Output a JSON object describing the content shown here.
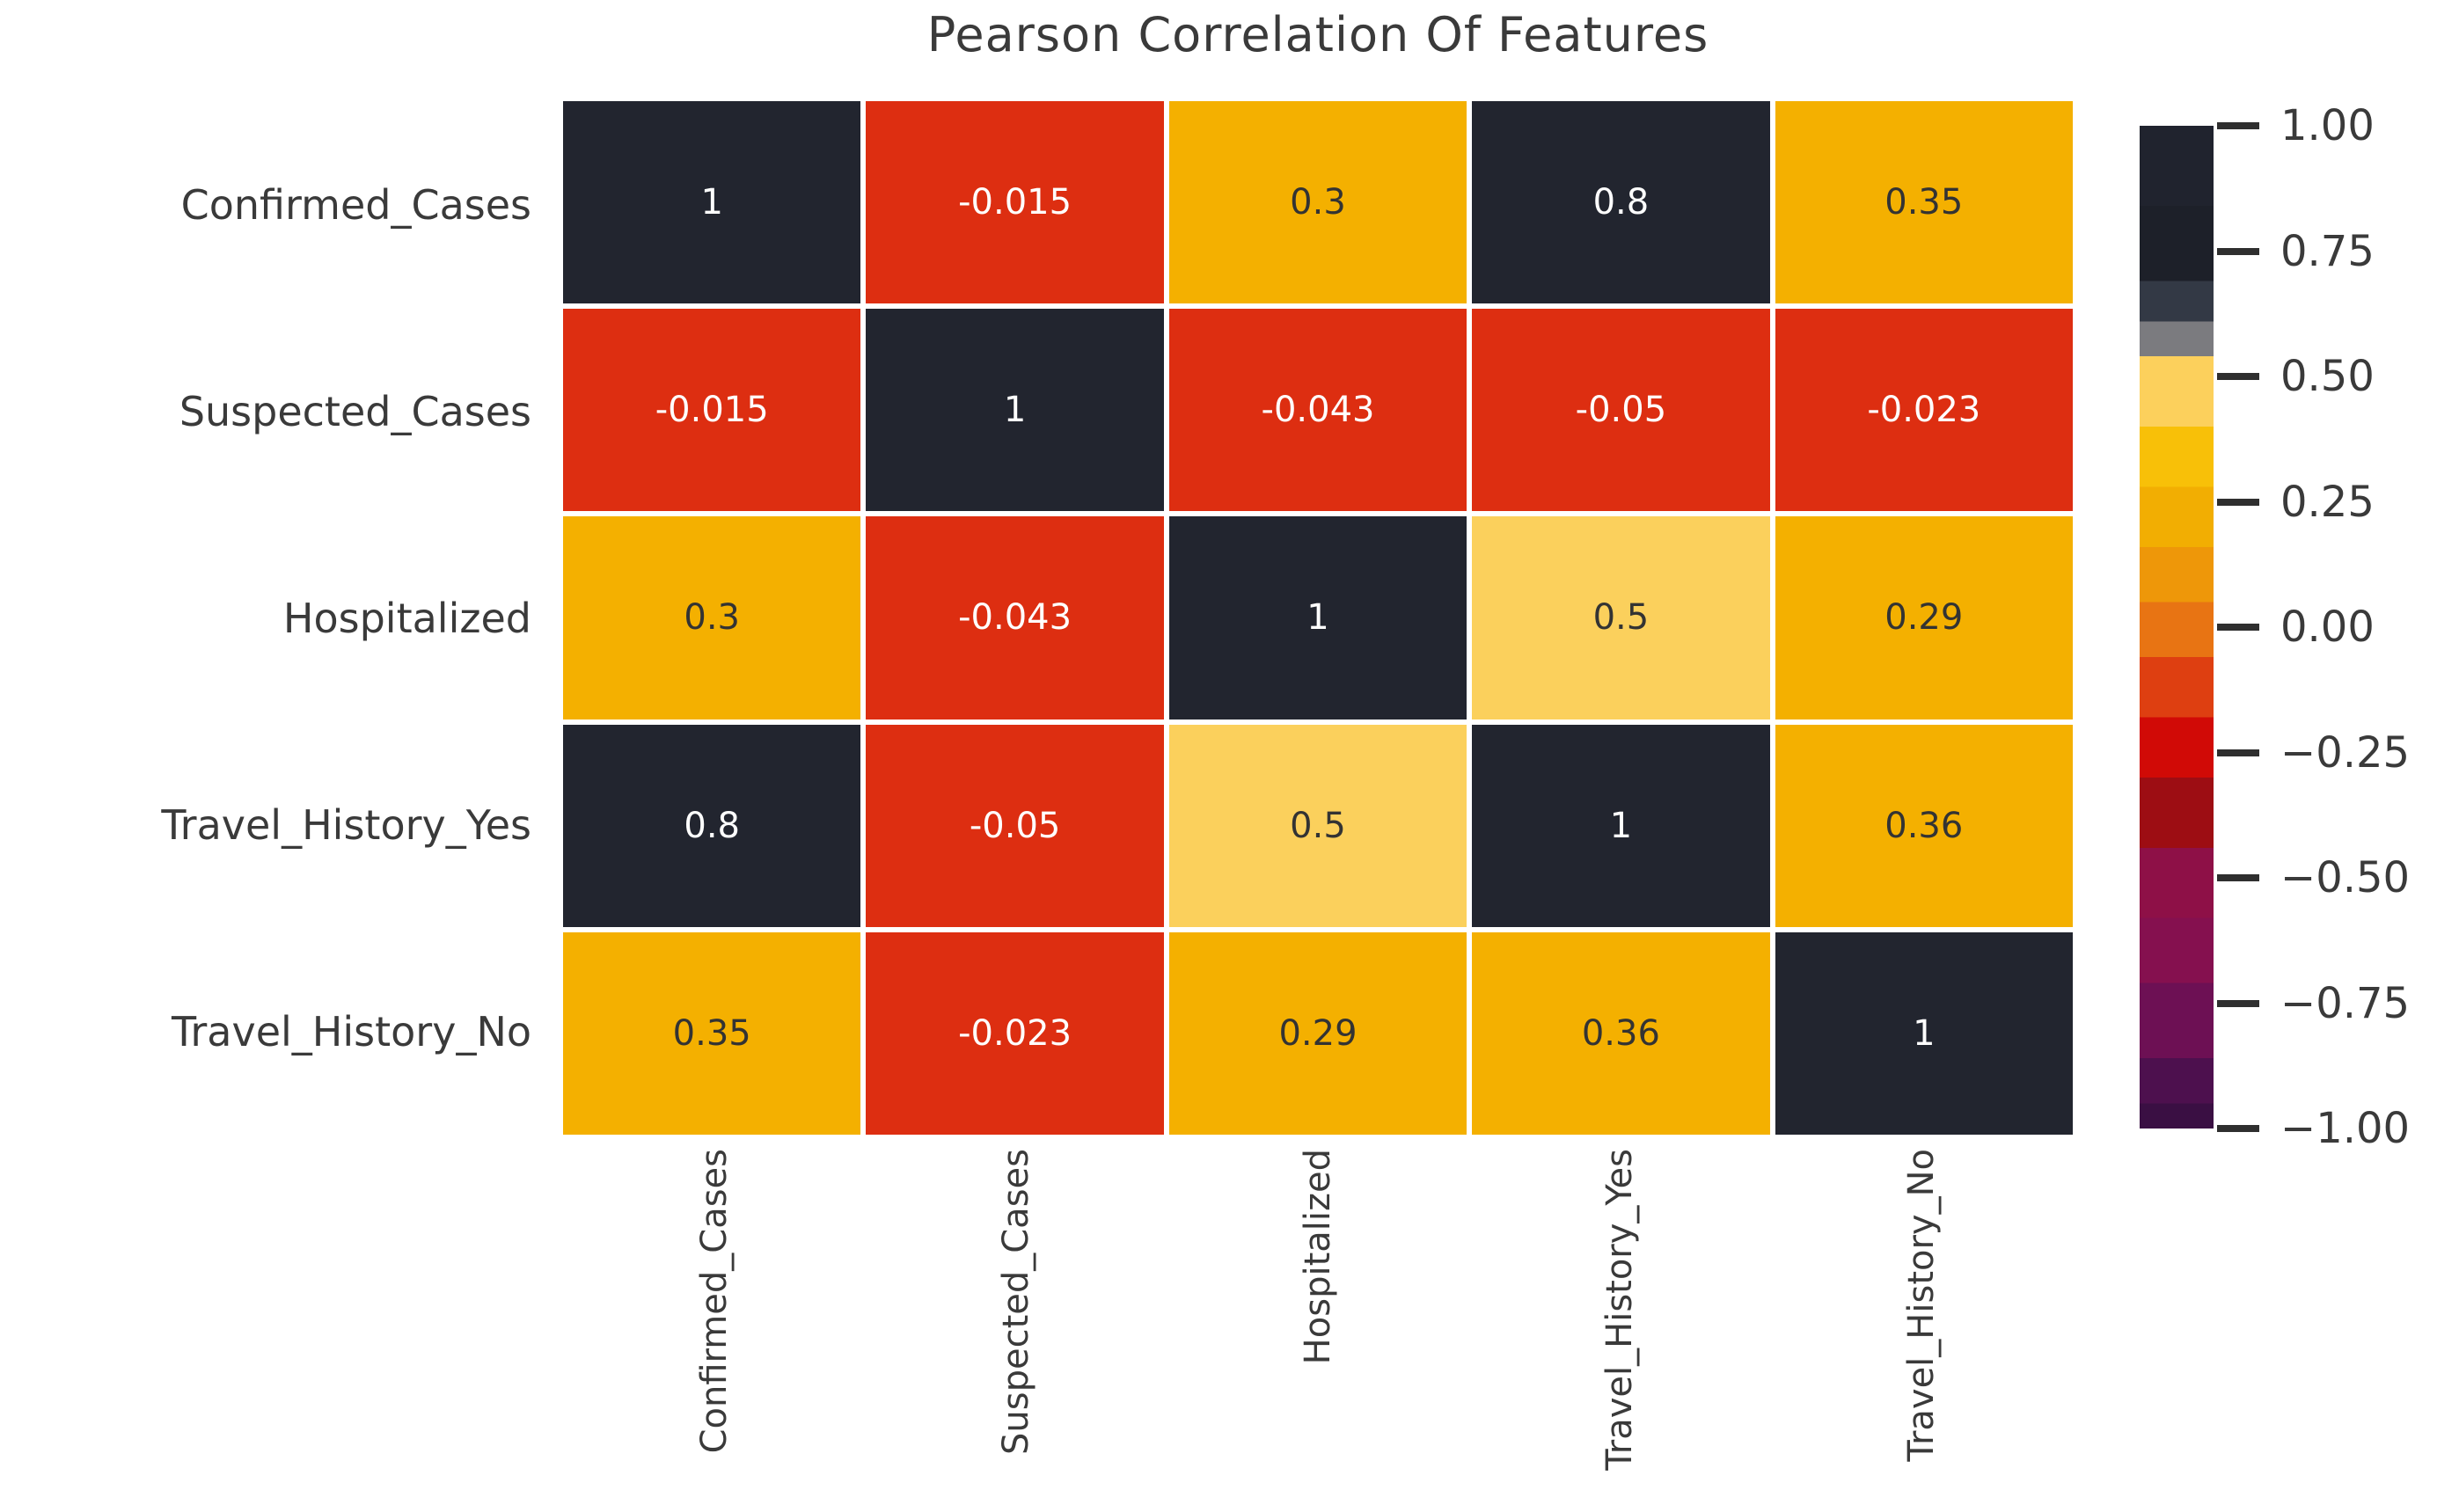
{
  "chart_data": {
    "type": "heatmap",
    "title": "Pearson Correlation Of Features",
    "features": [
      "Confirmed_Cases",
      "Suspected_Cases",
      "Hospitalized",
      "Travel_History_Yes",
      "Travel_History_No"
    ],
    "matrix": [
      [
        1,
        -0.015,
        0.3,
        0.8,
        0.35
      ],
      [
        -0.015,
        1,
        -0.043,
        -0.05,
        -0.023
      ],
      [
        0.3,
        -0.043,
        1,
        0.5,
        0.29
      ],
      [
        0.8,
        -0.05,
        0.5,
        1,
        0.36
      ],
      [
        0.35,
        -0.023,
        0.29,
        0.36,
        1
      ]
    ],
    "value_range": [
      -1,
      1
    ],
    "grid": "white-gaps",
    "legend_position": "right",
    "colorbar": {
      "ticks": [
        {
          "label": "1.00",
          "pos": 0.0
        },
        {
          "label": "0.75",
          "pos": 0.125
        },
        {
          "label": "0.50",
          "pos": 0.25
        },
        {
          "label": "0.25",
          "pos": 0.375
        },
        {
          "label": "0.00",
          "pos": 0.5
        },
        {
          "label": "−0.25",
          "pos": 0.625
        },
        {
          "label": "−0.50",
          "pos": 0.75
        },
        {
          "label": "−0.75",
          "pos": 0.875
        },
        {
          "label": "−1.00",
          "pos": 1.0
        }
      ],
      "bands": [
        {
          "to": 0.08,
          "color": "#20232e"
        },
        {
          "to": 0.155,
          "color": "#1d2029"
        },
        {
          "to": 0.195,
          "color": "#333945"
        },
        {
          "to": 0.23,
          "color": "#7b7b7f"
        },
        {
          "to": 0.3,
          "color": "#fcd05c"
        },
        {
          "to": 0.36,
          "color": "#f8c008"
        },
        {
          "to": 0.42,
          "color": "#f2ae02"
        },
        {
          "to": 0.475,
          "color": "#ee9709"
        },
        {
          "to": 0.53,
          "color": "#e87413"
        },
        {
          "to": 0.59,
          "color": "#de3f11"
        },
        {
          "to": 0.65,
          "color": "#d10a06"
        },
        {
          "to": 0.72,
          "color": "#9d0d13"
        },
        {
          "to": 0.79,
          "color": "#8e1047"
        },
        {
          "to": 0.855,
          "color": "#85104f"
        },
        {
          "to": 0.93,
          "color": "#6d1054"
        },
        {
          "to": 0.975,
          "color": "#4d104e"
        },
        {
          "to": 1.0,
          "color": "#3a0f43"
        }
      ]
    }
  },
  "colors": {
    "cell_dark": "#22252f",
    "cell_red": "#dd2e11",
    "cell_gold": "#f4b000",
    "cell_light_gold": "#fbd05c",
    "annot_light": "#ffffff",
    "annot_dark": "#333333",
    "label": "#3a3a3a",
    "tick": "#2f2f2f"
  }
}
